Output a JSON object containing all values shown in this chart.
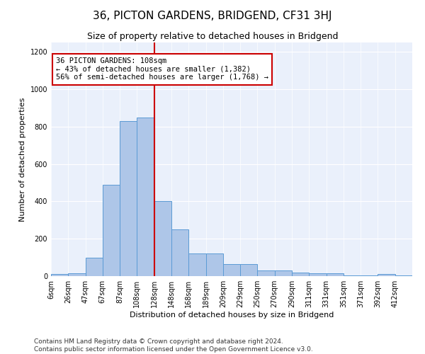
{
  "title": "36, PICTON GARDENS, BRIDGEND, CF31 3HJ",
  "subtitle": "Size of property relative to detached houses in Bridgend",
  "xlabel": "Distribution of detached houses by size in Bridgend",
  "ylabel": "Number of detached properties",
  "bar_color": "#aec6e8",
  "bar_edge_color": "#5b9bd5",
  "background_color": "#eaf0fb",
  "annotation_box_color": "#cc0000",
  "property_line_color": "#cc0000",
  "property_value_index": 5,
  "annotation_text": "36 PICTON GARDENS: 108sqm\n← 43% of detached houses are smaller (1,382)\n56% of semi-detached houses are larger (1,768) →",
  "categories": [
    "6sqm",
    "26sqm",
    "47sqm",
    "67sqm",
    "87sqm",
    "108sqm",
    "128sqm",
    "148sqm",
    "168sqm",
    "189sqm",
    "209sqm",
    "229sqm",
    "250sqm",
    "270sqm",
    "290sqm",
    "311sqm",
    "331sqm",
    "351sqm",
    "371sqm",
    "392sqm",
    "412sqm"
  ],
  "values": [
    10,
    15,
    100,
    490,
    830,
    850,
    400,
    250,
    120,
    120,
    65,
    65,
    30,
    30,
    20,
    15,
    15,
    5,
    5,
    10,
    5
  ],
  "ylim": [
    0,
    1250
  ],
  "yticks": [
    0,
    200,
    400,
    600,
    800,
    1000,
    1200
  ],
  "footer_text": "Contains HM Land Registry data © Crown copyright and database right 2024.\nContains public sector information licensed under the Open Government Licence v3.0.",
  "title_fontsize": 11,
  "subtitle_fontsize": 9,
  "axis_label_fontsize": 8,
  "tick_fontsize": 7,
  "annotation_fontsize": 7.5,
  "footer_fontsize": 6.5
}
